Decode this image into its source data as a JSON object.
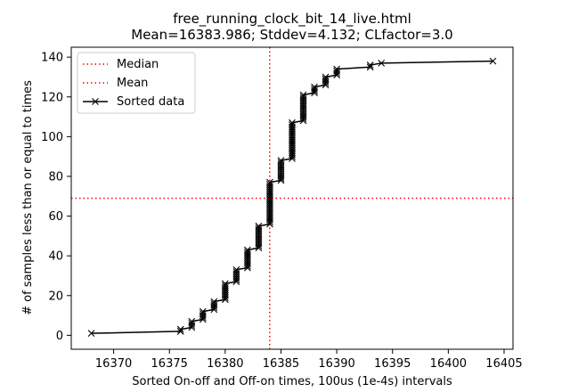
{
  "chart_data": {
    "type": "line",
    "title": "free_running_clock_bit_14_live.html",
    "subtitle": "Mean=16383.986; Stddev=4.132; CLfactor=3.0",
    "xlabel": "Sorted On-off and Off-on times, 100us (1e-4s) intervals",
    "ylabel": "# of samples less than or equal to times",
    "xlim": [
      16366.2,
      16405.8
    ],
    "ylim": [
      -7,
      145
    ],
    "xticks": [
      16370,
      16375,
      16380,
      16385,
      16390,
      16395,
      16400,
      16405
    ],
    "xtick_labels": [
      "16370",
      "16375",
      "16380",
      "16385",
      "16390",
      "16395",
      "16400",
      "16405"
    ],
    "yticks": [
      0,
      20,
      40,
      60,
      80,
      100,
      120,
      140
    ],
    "ytick_labels": [
      "0",
      "20",
      "40",
      "60",
      "80",
      "100",
      "120",
      "140"
    ],
    "grid": false,
    "legend_position": "upper-left",
    "legend": [
      {
        "label": "Median",
        "style": "dotted",
        "color": "#ff0000"
      },
      {
        "label": "Mean",
        "style": "dotted",
        "color": "#ff0000"
      },
      {
        "label": "Sorted data",
        "style": "solid-x-marker",
        "color": "#000000"
      }
    ],
    "reference_lines": [
      {
        "name": "Median",
        "orientation": "horizontal",
        "value": 69,
        "color": "#ff0000"
      },
      {
        "name": "Mean",
        "orientation": "vertical",
        "value": 16383.986,
        "color": "#ff0000"
      }
    ],
    "series": [
      {
        "name": "Sorted data",
        "color": "#000000",
        "marker": "x",
        "steps": [
          {
            "x": 16368,
            "y0": 1,
            "y1": 1
          },
          {
            "x": 16376,
            "y0": 2,
            "y1": 3
          },
          {
            "x": 16377,
            "y0": 4,
            "y1": 7
          },
          {
            "x": 16378,
            "y0": 8,
            "y1": 12
          },
          {
            "x": 16379,
            "y0": 13,
            "y1": 17
          },
          {
            "x": 16380,
            "y0": 18,
            "y1": 26
          },
          {
            "x": 16381,
            "y0": 27,
            "y1": 33
          },
          {
            "x": 16382,
            "y0": 34,
            "y1": 43
          },
          {
            "x": 16383,
            "y0": 44,
            "y1": 55
          },
          {
            "x": 16384,
            "y0": 56,
            "y1": 77
          },
          {
            "x": 16385,
            "y0": 78,
            "y1": 88
          },
          {
            "x": 16386,
            "y0": 89,
            "y1": 107
          },
          {
            "x": 16387,
            "y0": 108,
            "y1": 121
          },
          {
            "x": 16388,
            "y0": 122,
            "y1": 125
          },
          {
            "x": 16389,
            "y0": 126,
            "y1": 130
          },
          {
            "x": 16390,
            "y0": 131,
            "y1": 134
          },
          {
            "x": 16393,
            "y0": 135,
            "y1": 136
          },
          {
            "x": 16394,
            "y0": 137,
            "y1": 137
          },
          {
            "x": 16404,
            "y0": 138,
            "y1": 138
          }
        ]
      }
    ]
  }
}
